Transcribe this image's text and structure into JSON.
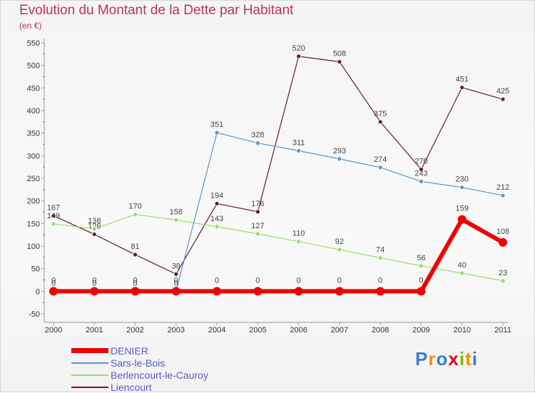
{
  "header": {
    "title": "Evolution du Montant de la Dette par Habitant",
    "subtitle": "(en €)"
  },
  "chart_data": {
    "type": "line",
    "title": "Evolution du Montant de la Dette par Habitant",
    "subtitle": "(en €)",
    "ylim": [
      -50,
      550
    ],
    "yticks": [
      "-50",
      "0",
      "50",
      "100",
      "150",
      "200",
      "250",
      "300",
      "350",
      "400",
      "450",
      "500",
      "550"
    ],
    "x": [
      "2000",
      "2001",
      "2002",
      "2003",
      "2004",
      "2005",
      "2006",
      "2007",
      "2008",
      "2009",
      "2010",
      "2011"
    ],
    "grid": false,
    "legend_position": "bottom-left",
    "series": [
      {
        "name": "Liencourt",
        "color": "#6b1a22",
        "width": 1.2,
        "point_r": 3,
        "values": [
          167,
          126,
          81,
          38,
          194,
          176,
          520,
          508,
          375,
          270,
          451,
          425
        ],
        "labels": [
          "167",
          "126",
          "81",
          "38",
          "194",
          "176",
          "520",
          "508",
          "375",
          "270",
          "451",
          "425"
        ]
      },
      {
        "name": "Berlencourt-le-Cauroy",
        "color": "#99dd66",
        "width": 1.2,
        "point_r": 3,
        "values": [
          149,
          138,
          170,
          158,
          143,
          127,
          110,
          92,
          74,
          56,
          40,
          23
        ],
        "labels": [
          "149",
          "138",
          "170",
          "158",
          "143",
          "127",
          "110",
          "92",
          "74",
          "56",
          "40",
          "23"
        ]
      },
      {
        "name": "Sars-le-Bois",
        "color": "#5b93cf",
        "width": 1.2,
        "point_r": 3,
        "values": [
          0,
          0,
          0,
          0,
          351,
          328,
          311,
          293,
          274,
          243,
          230,
          212
        ],
        "labels": [
          "0",
          "0",
          "0",
          "0",
          "351",
          "328",
          "311",
          "293",
          "274",
          "243",
          "230",
          "212"
        ]
      },
      {
        "name": "DENIER",
        "color": "#ee0000",
        "width": 6,
        "point_r": 6,
        "values": [
          0,
          0,
          0,
          0,
          0,
          0,
          0,
          0,
          0,
          0,
          159,
          108
        ],
        "labels": [
          "0",
          "0",
          "0",
          "0",
          "0",
          "0",
          "0",
          "0",
          "0",
          "0",
          "159",
          "108"
        ]
      }
    ]
  },
  "legend": {
    "items": [
      {
        "label": "DENIER",
        "color": "#ee0000",
        "thick": true
      },
      {
        "label": "Sars-le-Bois",
        "color": "#5b93cf",
        "thick": false
      },
      {
        "label": "Berlencourt-le-Cauroy",
        "color": "#99dd66",
        "thick": false
      },
      {
        "label": "Liencourt",
        "color": "#6b1a22",
        "thick": false
      }
    ]
  },
  "logo": {
    "text": "Proxiti",
    "letters": [
      "P",
      "r",
      "o",
      "x",
      "i",
      "t",
      "i"
    ],
    "colors": [
      "#3a7fd4",
      "#f39200",
      "#3a7fd4",
      "#e3001b",
      "#7ab800",
      "#f39200",
      "#3a7fd4"
    ]
  }
}
